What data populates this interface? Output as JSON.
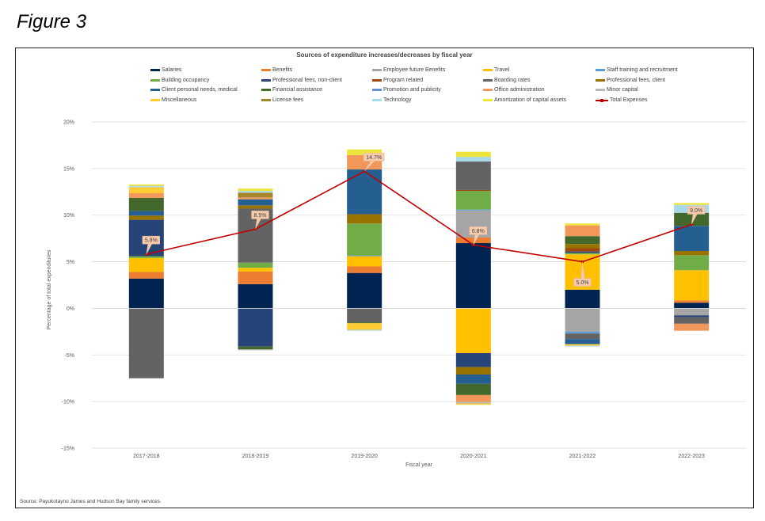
{
  "figure_label": "Figure 3",
  "source_note": "Source: Payukotayno James and Hudson Bay family services.",
  "chart_data": {
    "type": "bar",
    "stacked": true,
    "title": "Sources of expenditure increases/decreases by fiscal year",
    "xlabel": "Fiscal year",
    "ylabel": "Percentage of total expenditures",
    "ylim": [
      -15,
      20
    ],
    "yticks": [
      20,
      15,
      10,
      5,
      0,
      -5,
      -10,
      -15
    ],
    "ytick_labels": [
      "20%",
      "15%",
      "10%",
      "5%",
      "0%",
      "-5%",
      "-10%",
      "-15%"
    ],
    "grid": true,
    "legend_position": "top",
    "categories": [
      "2017-2018",
      "2018-2019",
      "2019-2020",
      "2020-2021",
      "2021-2022",
      "2022-2023"
    ],
    "series": [
      {
        "name": "Salaries",
        "color": "#002451",
        "values": [
          3.2,
          2.6,
          3.8,
          7.0,
          2.0,
          0.6
        ]
      },
      {
        "name": "Benefits",
        "color": "#ED7D31",
        "values": [
          0.7,
          1.35,
          0.7,
          0.6,
          0,
          0.25
        ]
      },
      {
        "name": "Employee future Benefits",
        "color": "#A5A5A5",
        "values": [
          0,
          0,
          0,
          2.9,
          -2.5,
          -0.75
        ]
      },
      {
        "name": "Travel",
        "color": "#FFC000",
        "values": [
          1.5,
          0.4,
          1.1,
          -4.8,
          3.8,
          3.25
        ]
      },
      {
        "name": "Staff training and recruitment",
        "color": "#5B9BD5",
        "values": [
          0,
          0,
          0.1,
          0.1,
          -0.2,
          0
        ]
      },
      {
        "name": "Building occupancy",
        "color": "#70AD47",
        "values": [
          0.2,
          0.55,
          3.4,
          2.0,
          0.15,
          1.6
        ]
      },
      {
        "name": "Professional fees, non-client",
        "color": "#264478",
        "values": [
          3.9,
          -4.1,
          0,
          -1.5,
          0.15,
          -0.2
        ]
      },
      {
        "name": "Program related",
        "color": "#9E480E",
        "values": [
          0,
          0,
          0,
          0.1,
          0.35,
          0
        ]
      },
      {
        "name": "Boarding rates",
        "color": "#636363",
        "values": [
          -7.5,
          5.8,
          -1.5,
          3.05,
          -0.6,
          -0.7
        ]
      },
      {
        "name": "Professional fees, client",
        "color": "#997300",
        "values": [
          0.45,
          0.35,
          1.0,
          -0.8,
          0.45,
          0.45
        ]
      },
      {
        "name": "Client personal needs, medical",
        "color": "#255E91",
        "values": [
          0.5,
          0.65,
          4.8,
          -1.0,
          -0.55,
          2.7
        ]
      },
      {
        "name": "Financial assistance",
        "color": "#43682B",
        "values": [
          1.4,
          -0.3,
          -0.1,
          -1.2,
          0.85,
          1.4
        ]
      },
      {
        "name": "Promotion and publicity",
        "color": "#698ED0",
        "values": [
          0,
          0,
          0,
          0,
          0,
          0
        ]
      },
      {
        "name": "Office administration",
        "color": "#F1975A",
        "values": [
          0.5,
          0.2,
          1.55,
          -0.75,
          1.15,
          -0.75
        ]
      },
      {
        "name": "Minor capital",
        "color": "#B7B7B7",
        "values": [
          0,
          -0.1,
          0,
          -0.15,
          0,
          0
        ]
      },
      {
        "name": "Miscellaneous",
        "color": "#FFCD33",
        "values": [
          0.65,
          0,
          -0.7,
          -0.15,
          -0.15,
          0
        ]
      },
      {
        "name": "License fees",
        "color": "#A5862A",
        "values": [
          0,
          0.5,
          0,
          0,
          0,
          0
        ]
      },
      {
        "name": "Technology",
        "color": "#A9D8E8",
        "values": [
          0.15,
          0.2,
          -0.1,
          0.5,
          -0.1,
          0.85
        ]
      },
      {
        "name": "Amortization of capital assets",
        "color": "#EEE53C",
        "values": [
          0.15,
          0.25,
          0.6,
          0.55,
          0.2,
          0.2
        ]
      }
    ],
    "line_series": {
      "name": "Total Expenses",
      "color": "#C00000",
      "values": [
        5.8,
        8.5,
        14.7,
        6.8,
        5.0,
        9.0
      ],
      "labels": [
        "5.8%",
        "8.5%",
        "14.7%",
        "6.8%",
        "5.0%",
        "9.0%"
      ]
    }
  }
}
